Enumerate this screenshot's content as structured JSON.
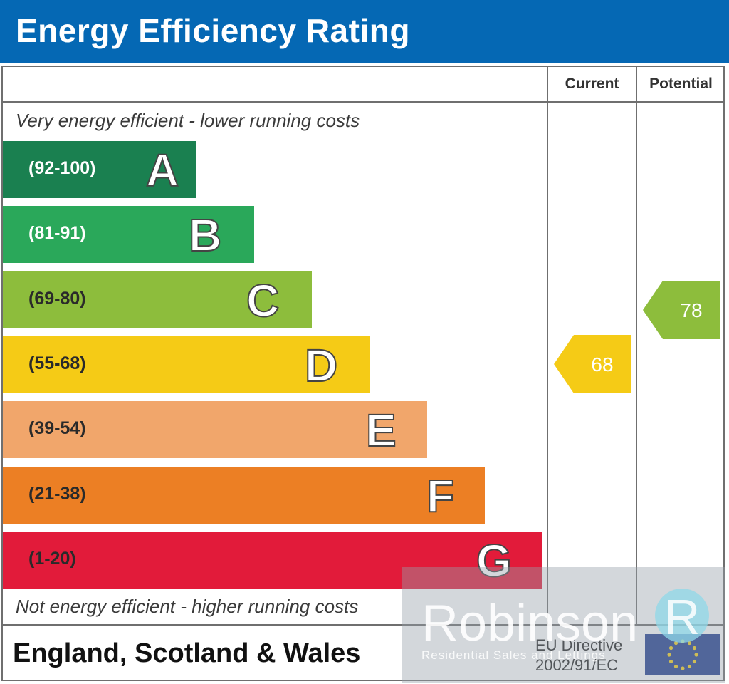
{
  "header": {
    "title": "Energy Efficiency Rating"
  },
  "columns": {
    "current": "Current",
    "potential": "Potential"
  },
  "notes": {
    "top": "Very energy efficient - lower running costs",
    "bottom": "Not energy efficient - higher running costs"
  },
  "chart_data": {
    "type": "bar",
    "bands": [
      {
        "letter": "A",
        "range": "(92-100)",
        "min": 92,
        "max": 100,
        "color": "#1a8050",
        "range_color": "#ffffff"
      },
      {
        "letter": "B",
        "range": "(81-91)",
        "min": 81,
        "max": 91,
        "color": "#2aa85a",
        "range_color": "#ffffff"
      },
      {
        "letter": "C",
        "range": "(69-80)",
        "min": 69,
        "max": 80,
        "color": "#8dbd3c",
        "range_color": "#2a2a2a"
      },
      {
        "letter": "D",
        "range": "(55-68)",
        "min": 55,
        "max": 68,
        "color": "#f5cb16",
        "range_color": "#2a2a2a"
      },
      {
        "letter": "E",
        "range": "(39-54)",
        "min": 39,
        "max": 54,
        "color": "#f1a66b",
        "range_color": "#2a2a2a"
      },
      {
        "letter": "F",
        "range": "(21-38)",
        "min": 21,
        "max": 38,
        "color": "#ec7f24",
        "range_color": "#2a2a2a"
      },
      {
        "letter": "G",
        "range": "(1-20)",
        "min": 1,
        "max": 20,
        "color": "#e21b3a",
        "range_color": "#2a2a2a"
      }
    ],
    "current": {
      "value": 68,
      "band": "D",
      "color": "#f5cb16"
    },
    "potential": {
      "value": 78,
      "band": "C",
      "color": "#8dbd3c"
    }
  },
  "footer": {
    "region": "England, Scotland & Wales",
    "directive_line1": "EU Directive",
    "directive_line2": "2002/91/EC"
  },
  "watermark": {
    "name": "Robinson",
    "tagline": "Residential Sales and Lettings"
  },
  "icons": {
    "flag": "eu-flag-icon",
    "logo": "robinson-logo-icon"
  }
}
